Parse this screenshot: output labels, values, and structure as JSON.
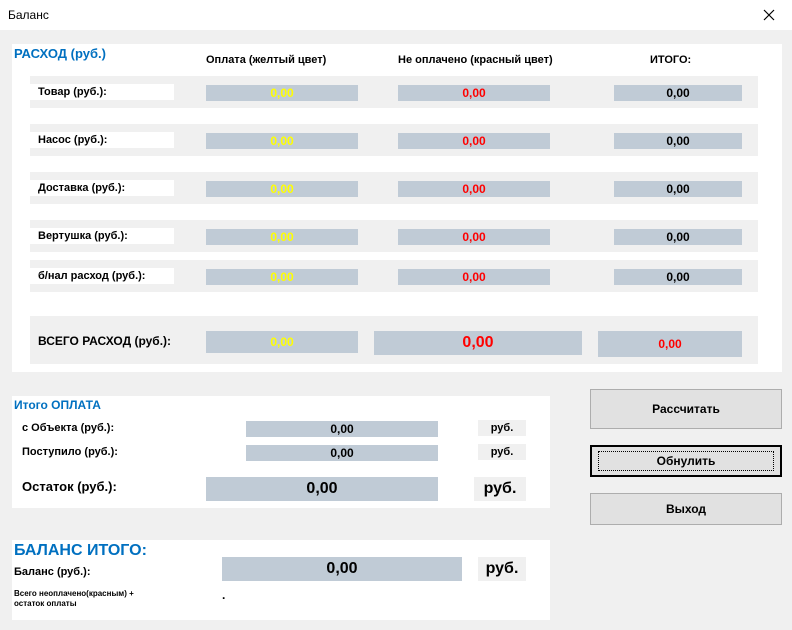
{
  "window": {
    "title": "Баланс"
  },
  "expense": {
    "section_title": "РАСХОД (руб.)",
    "col_paid": "Оплата (желтый цвет)",
    "col_unpaid": "Не оплачено (красный цвет)",
    "col_total": "ИТОГО:",
    "rows": [
      {
        "label": "Товар (руб.):",
        "paid": "0,00",
        "unpaid": "0,00",
        "total": "0,00"
      },
      {
        "label": "Насос (руб.):",
        "paid": "0,00",
        "unpaid": "0,00",
        "total": "0,00"
      },
      {
        "label": "Доставка (руб.):",
        "paid": "0,00",
        "unpaid": "0,00",
        "total": "0,00"
      },
      {
        "label": "Вертушка (руб.):",
        "paid": "0,00",
        "unpaid": "0,00",
        "total": "0,00"
      },
      {
        "label": "б/нал расход (руб.):",
        "paid": "0,00",
        "unpaid": "0,00",
        "total": "0,00"
      }
    ],
    "total_row": {
      "label": "ВСЕГО РАСХОД (руб.):",
      "paid": "0,00",
      "unpaid": "0,00",
      "total": "0,00"
    }
  },
  "payment": {
    "section_title": "Итого ОПЛАТА",
    "from_object_label": "с Объекта (руб.):",
    "from_object_value": "0,00",
    "received_label": "Поступило (руб.):",
    "received_value": "0,00",
    "remainder_label": "Остаток (руб.):",
    "remainder_value": "0,00",
    "unit_small": "руб.",
    "unit_large": "руб."
  },
  "buttons": {
    "calculate": "Рассчитать",
    "reset": "Обнулить",
    "exit": "Выход"
  },
  "balance": {
    "section_title": "БАЛАНС ИТОГО:",
    "label": "Баланс (руб.):",
    "value": "0,00",
    "unit": "руб.",
    "note": "Всего неоплачено(красным) + остаток оплаты",
    "dot": "."
  },
  "colors": {
    "accent_title": "#0070c0",
    "paid_text": "#ffff00",
    "unpaid_text": "#ff0000",
    "field_bg": "#c0cbd6"
  }
}
